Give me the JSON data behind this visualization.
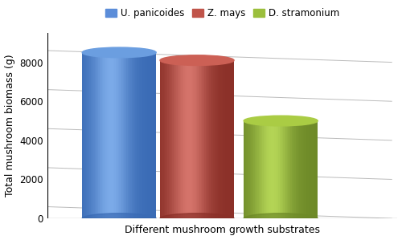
{
  "bars": [
    {
      "label": "U. panicoides",
      "value": 8500,
      "color_body": "#5B8DD9",
      "color_light": "#7BAAE8",
      "color_dark": "#3A6BB5",
      "color_top": "#6B9EE0"
    },
    {
      "label": "Z. mays",
      "value": 8100,
      "color_body": "#C0544A",
      "color_light": "#D4736A",
      "color_dark": "#8B3028",
      "color_top": "#CC6055"
    },
    {
      "label": "D. stramonium",
      "value": 5000,
      "color_body": "#9BBF3C",
      "color_light": "#B3D455",
      "color_dark": "#6E8A28",
      "color_top": "#AACC44"
    }
  ],
  "ylabel": "Total mushroom biomass (g)",
  "xlabel": "Different mushroom growth substrates",
  "ylim": [
    0,
    9500
  ],
  "yticks": [
    0,
    2000,
    4000,
    6000,
    8000
  ],
  "background_color": "#FFFFFF",
  "grid_color": "#BBBBBB",
  "legend_labels": [
    "U. panicoides",
    "Z. mays",
    "D. stramonium"
  ],
  "legend_colors": [
    "#5B8DD9",
    "#C0544A",
    "#9BBF3C"
  ],
  "bar_width": 0.38,
  "ellipse_height_ratio": 0.055,
  "depth_x": 0.13,
  "depth_y_ratio": 0.04,
  "positions": [
    0.32,
    0.72,
    1.15
  ],
  "xlim": [
    -0.05,
    1.75
  ],
  "floor_y": 0,
  "floor_depth": 0.12
}
